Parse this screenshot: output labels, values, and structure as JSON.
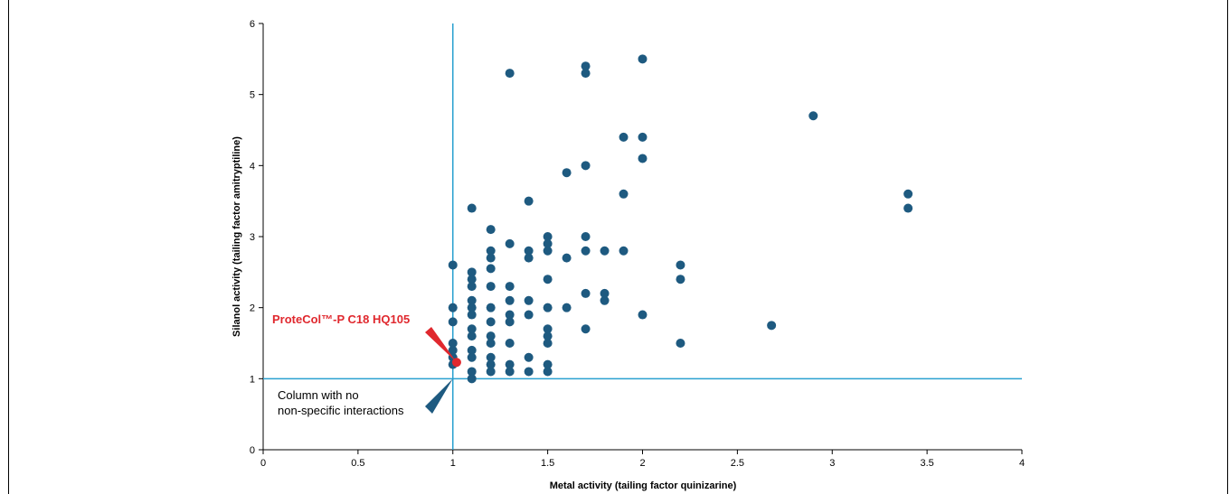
{
  "chart_data": {
    "type": "scatter",
    "title": "",
    "xlabel": "Metal activity (tailing factor quinizarine)",
    "ylabel": "Silanol activity (tailing factor amitryptiline)",
    "xlim": [
      0,
      4
    ],
    "ylim": [
      0,
      6
    ],
    "x_ticks": [
      "0",
      "0.5",
      "1",
      "1.5",
      "2",
      "2.5",
      "3",
      "3.5",
      "4"
    ],
    "y_ticks": [
      "0",
      "1",
      "2",
      "3",
      "4",
      "5",
      "6"
    ],
    "grid": false,
    "colors": {
      "points": "#1e5a80",
      "reference_lines": "#2aa0d0",
      "highlight": "#e0282e"
    },
    "reference_lines": {
      "x": 1,
      "y": 1
    },
    "points": [
      {
        "x": 1.0,
        "y": 2.6
      },
      {
        "x": 1.0,
        "y": 2.0
      },
      {
        "x": 1.0,
        "y": 1.8
      },
      {
        "x": 1.0,
        "y": 1.5
      },
      {
        "x": 1.0,
        "y": 1.4
      },
      {
        "x": 1.0,
        "y": 1.3
      },
      {
        "x": 1.0,
        "y": 1.2
      },
      {
        "x": 1.1,
        "y": 3.4
      },
      {
        "x": 1.1,
        "y": 2.5
      },
      {
        "x": 1.1,
        "y": 2.4
      },
      {
        "x": 1.1,
        "y": 2.3
      },
      {
        "x": 1.1,
        "y": 2.1
      },
      {
        "x": 1.1,
        "y": 2.0
      },
      {
        "x": 1.1,
        "y": 1.9
      },
      {
        "x": 1.1,
        "y": 1.7
      },
      {
        "x": 1.1,
        "y": 1.6
      },
      {
        "x": 1.1,
        "y": 1.4
      },
      {
        "x": 1.1,
        "y": 1.3
      },
      {
        "x": 1.1,
        "y": 1.1
      },
      {
        "x": 1.1,
        "y": 1.0
      },
      {
        "x": 1.2,
        "y": 3.1
      },
      {
        "x": 1.2,
        "y": 2.8
      },
      {
        "x": 1.2,
        "y": 2.7
      },
      {
        "x": 1.2,
        "y": 2.55
      },
      {
        "x": 1.2,
        "y": 2.3
      },
      {
        "x": 1.2,
        "y": 2.0
      },
      {
        "x": 1.2,
        "y": 1.8
      },
      {
        "x": 1.2,
        "y": 1.6
      },
      {
        "x": 1.2,
        "y": 1.5
      },
      {
        "x": 1.2,
        "y": 1.3
      },
      {
        "x": 1.2,
        "y": 1.2
      },
      {
        "x": 1.2,
        "y": 1.1
      },
      {
        "x": 1.3,
        "y": 5.3
      },
      {
        "x": 1.3,
        "y": 2.9
      },
      {
        "x": 1.3,
        "y": 2.3
      },
      {
        "x": 1.3,
        "y": 2.1
      },
      {
        "x": 1.3,
        "y": 1.9
      },
      {
        "x": 1.3,
        "y": 1.8
      },
      {
        "x": 1.3,
        "y": 1.5
      },
      {
        "x": 1.3,
        "y": 1.2
      },
      {
        "x": 1.3,
        "y": 1.1
      },
      {
        "x": 1.4,
        "y": 3.5
      },
      {
        "x": 1.4,
        "y": 2.8
      },
      {
        "x": 1.4,
        "y": 2.7
      },
      {
        "x": 1.4,
        "y": 2.1
      },
      {
        "x": 1.4,
        "y": 1.9
      },
      {
        "x": 1.4,
        "y": 1.3
      },
      {
        "x": 1.4,
        "y": 1.1
      },
      {
        "x": 1.5,
        "y": 3.0
      },
      {
        "x": 1.5,
        "y": 2.9
      },
      {
        "x": 1.5,
        "y": 2.8
      },
      {
        "x": 1.5,
        "y": 2.4
      },
      {
        "x": 1.5,
        "y": 2.0
      },
      {
        "x": 1.5,
        "y": 1.7
      },
      {
        "x": 1.5,
        "y": 1.6
      },
      {
        "x": 1.5,
        "y": 1.5
      },
      {
        "x": 1.5,
        "y": 1.2
      },
      {
        "x": 1.5,
        "y": 1.1
      },
      {
        "x": 1.6,
        "y": 3.9
      },
      {
        "x": 1.6,
        "y": 2.7
      },
      {
        "x": 1.6,
        "y": 2.0
      },
      {
        "x": 1.7,
        "y": 5.4
      },
      {
        "x": 1.7,
        "y": 5.3
      },
      {
        "x": 1.7,
        "y": 4.0
      },
      {
        "x": 1.7,
        "y": 3.0
      },
      {
        "x": 1.7,
        "y": 2.8
      },
      {
        "x": 1.7,
        "y": 2.2
      },
      {
        "x": 1.7,
        "y": 1.7
      },
      {
        "x": 1.8,
        "y": 2.8
      },
      {
        "x": 1.8,
        "y": 2.2
      },
      {
        "x": 1.8,
        "y": 2.1
      },
      {
        "x": 1.9,
        "y": 4.4
      },
      {
        "x": 1.9,
        "y": 3.6
      },
      {
        "x": 1.9,
        "y": 2.8
      },
      {
        "x": 2.0,
        "y": 5.5
      },
      {
        "x": 2.0,
        "y": 4.4
      },
      {
        "x": 2.0,
        "y": 4.1
      },
      {
        "x": 2.0,
        "y": 1.9
      },
      {
        "x": 2.2,
        "y": 2.6
      },
      {
        "x": 2.2,
        "y": 2.4
      },
      {
        "x": 2.2,
        "y": 1.5
      },
      {
        "x": 2.68,
        "y": 1.75
      },
      {
        "x": 2.9,
        "y": 4.7
      },
      {
        "x": 3.4,
        "y": 3.6
      },
      {
        "x": 3.4,
        "y": 3.4
      }
    ],
    "highlight_point": {
      "x": 1.02,
      "y": 1.23
    },
    "annotations": {
      "highlight_label": "ProteCol™-P C18 HQ105",
      "ideal_label_line1": "Column with no",
      "ideal_label_line2": "non-specific interactions"
    }
  }
}
